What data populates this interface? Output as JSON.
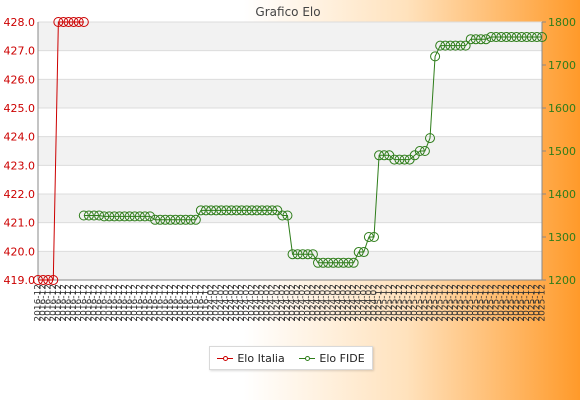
{
  "chart_data": {
    "type": "line",
    "title": "Grafico Elo",
    "legend_position": "bottom-center",
    "grid": true,
    "y_left": {
      "ylim": [
        419.0,
        428.0
      ],
      "ticks": [
        419.0,
        420.0,
        421.0,
        422.0,
        423.0,
        424.0,
        425.0,
        426.0,
        427.0,
        428.0
      ],
      "color": "#cc0000"
    },
    "y_right": {
      "ylim": [
        1200,
        1800
      ],
      "ticks": [
        1200,
        1300,
        1400,
        1500,
        1600,
        1700,
        1800
      ],
      "color": "#2e7d1a"
    },
    "x_tick_labels": [
      "2016-12",
      "2024-02",
      "2025-12"
    ],
    "series": [
      {
        "name": "Elo Italia",
        "axis": "left",
        "color": "#cc0000",
        "values": [
          419,
          419,
          419,
          419,
          428,
          428,
          428,
          428,
          428,
          428
        ]
      },
      {
        "name": "Elo FIDE",
        "axis": "right",
        "color": "#2e7d1a",
        "offset": 9,
        "values": [
          1350,
          1350,
          1350,
          1350,
          1348,
          1348,
          1348,
          1348,
          1348,
          1348,
          1348,
          1348,
          1348,
          1348,
          1340,
          1340,
          1340,
          1340,
          1340,
          1340,
          1340,
          1340,
          1340,
          1362,
          1362,
          1362,
          1362,
          1362,
          1362,
          1362,
          1362,
          1362,
          1362,
          1362,
          1362,
          1362,
          1362,
          1362,
          1362,
          1350,
          1350,
          1260,
          1260,
          1260,
          1260,
          1260,
          1240,
          1240,
          1240,
          1240,
          1240,
          1240,
          1240,
          1240,
          1265,
          1265,
          1300,
          1300,
          1490,
          1490,
          1490,
          1480,
          1480,
          1480,
          1480,
          1490,
          1500,
          1500,
          1530,
          1720,
          1745,
          1745,
          1745,
          1745,
          1745,
          1745,
          1760,
          1760,
          1760,
          1760,
          1765,
          1765,
          1765,
          1765,
          1765,
          1765,
          1765,
          1765,
          1765,
          1765,
          1765
        ]
      }
    ]
  }
}
